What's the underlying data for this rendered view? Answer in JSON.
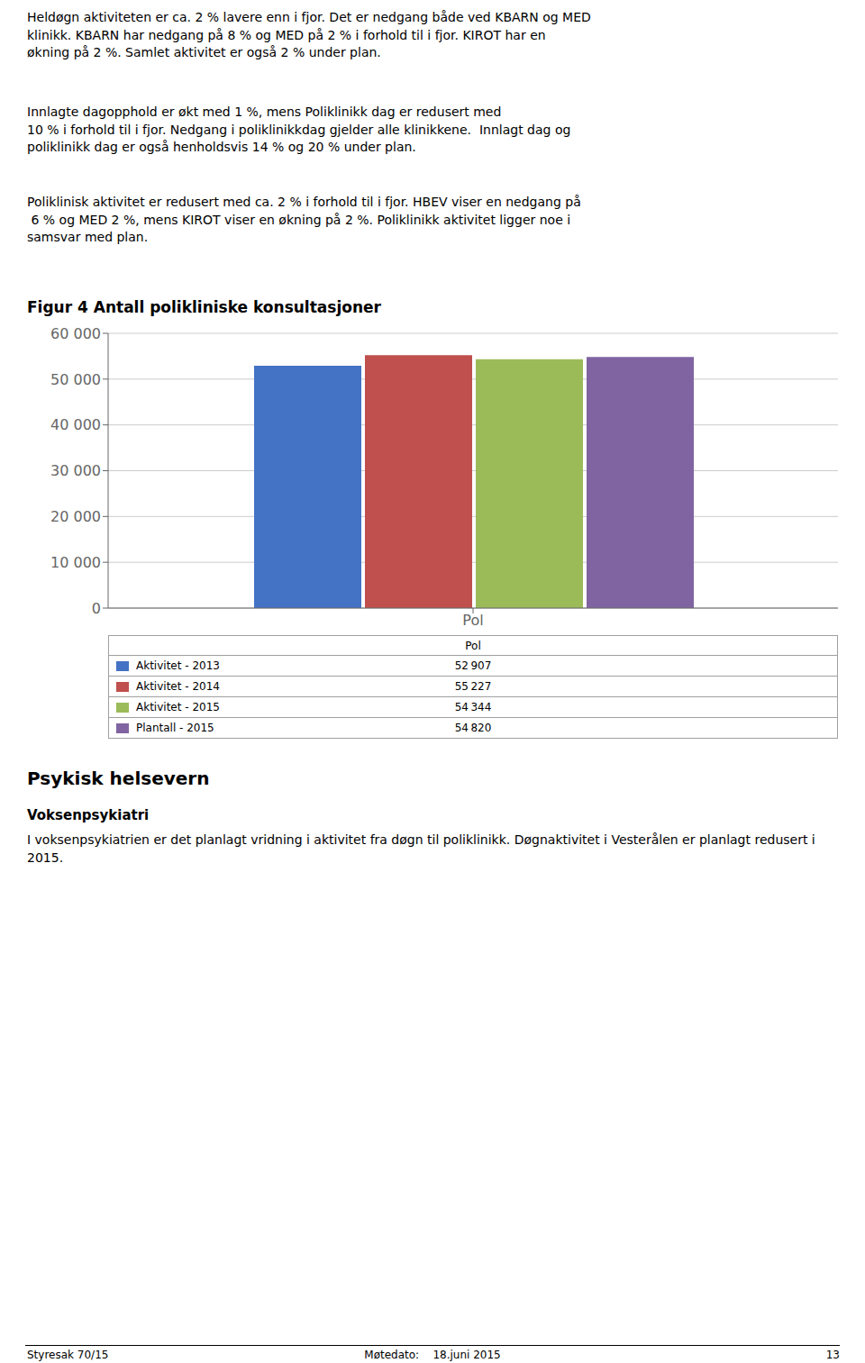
{
  "chart_data": {
    "type": "bar",
    "title": "Figur 4 Antall polikliniske konsultasjoner",
    "categories": [
      "Pol"
    ],
    "series": [
      {
        "name": "Aktivitet - 2013",
        "color": "#4472C4",
        "values": [
          52907
        ],
        "value_labels": [
          "52 907"
        ]
      },
      {
        "name": "Aktivitet - 2014",
        "color": "#C0504D",
        "values": [
          55227
        ],
        "value_labels": [
          "55 227"
        ]
      },
      {
        "name": "Aktivitet - 2015",
        "color": "#9BBB59",
        "values": [
          54344
        ],
        "value_labels": [
          "54 344"
        ]
      },
      {
        "name": "Plantall - 2015",
        "color": "#8064A2",
        "values": [
          54820
        ],
        "value_labels": [
          "54 820"
        ]
      }
    ],
    "ylim": [
      0,
      60000
    ],
    "yticks": [
      0,
      {
        "value": 10000,
        "label": "10 000"
      },
      {
        "value": 20000,
        "label": "20 000"
      },
      {
        "value": 30000,
        "label": "30 000"
      },
      {
        "value": 40000,
        "label": "40 000"
      },
      {
        "value": 50000,
        "label": "50 000"
      },
      {
        "value": 60000,
        "label": "60 000"
      }
    ],
    "grid": true
  },
  "body_text": [
    "Heldøgn aktiviteten er ca. 2 % lavere enn i fjor. Det er nedgang både ved KBARN og MED\nklinikk. KBARN har nedgang på 8 % og MED på 2 % i forhold til i fjor. KIROT har en\nøkning på 2 %. Samlet aktivitet er også 2 % under plan.",
    "Innlagte dagopphold er økt med 1 %, mens Poliklinikk dag er redusert med\n10 % i forhold til i fjor. Nedgang i poliklinikkdag gjelder alle klinikkene.  Innlagt dag og\npoliklinikk dag er også henholdsvis 14 % og 20 % under plan.",
    "Poliklinisk aktivitet er redusert med ca. 2 % i forhold til i fjor. HBEV viser en nedgang på\n 6 % og MED 2 %, mens KIROT viser en økning på 2 %. Poliklinikk aktivitet ligger noe i\nsamsvar med plan."
  ],
  "section_heading": "Psykisk helsevern",
  "subsection_heading": "Voksenpsykiatri",
  "subsection_text": "I voksenpsykiatrien er det planlagt vridning i aktivitet fra døgn til poliklinikk. Døgnaktivitet i Vesterålen er planlagt redusert i 2015.",
  "footer": [
    "Styresak 70/15",
    "Møtedato:    18.juni 2015",
    "13"
  ]
}
